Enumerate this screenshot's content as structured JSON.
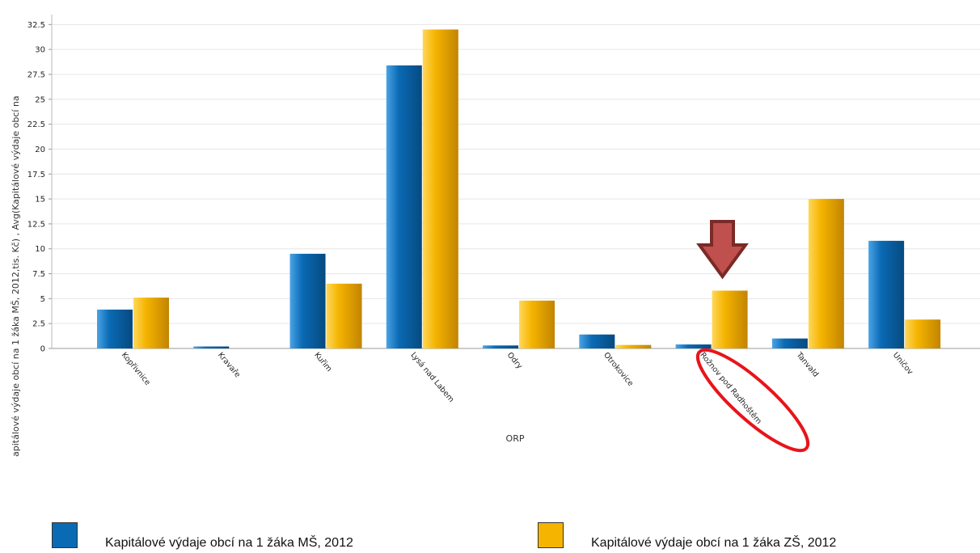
{
  "chart_data": {
    "type": "bar",
    "title": "",
    "xlabel": "ORP",
    "ylabel": "apitálové výdaje obcí na 1 žáka MŠ, 2012,tis. Kč) , Avg(Kapitálové výdaje obcí na",
    "ylim": [
      0,
      33.5
    ],
    "yticks": [
      "0",
      "2.5",
      "5",
      "7.5",
      "10",
      "12.5",
      "15",
      "17.5",
      "20",
      "22.5",
      "25",
      "27.5",
      "30",
      "32.5"
    ],
    "grid": true,
    "legend_position": "bottom",
    "categories": [
      "Kopřivnice",
      "Kravaře",
      "Kuřim",
      "Lysá nad Labem",
      "Odry",
      "Otrokovice",
      "Rožnov pod Radhoštěm",
      "Tanvald",
      "Uničov"
    ],
    "series": [
      {
        "name": "Kapitálové výdaje obcí na 1 žáka MŠ, 2012",
        "color": "#0a6ab4",
        "values": [
          3.9,
          0.2,
          9.5,
          28.4,
          0.3,
          1.4,
          0.4,
          1.0,
          10.8
        ]
      },
      {
        "name": "Kapitálové výdaje obcí na 1 žáka ZŠ, 2012",
        "color": "#f5b400",
        "values": [
          5.1,
          0.0,
          6.5,
          32.0,
          4.8,
          0.35,
          5.8,
          15.0,
          2.9
        ]
      }
    ],
    "annotations": [
      {
        "type": "arrow",
        "color": "#c0504d",
        "target_category": "Rožnov pod Radhoštěm"
      },
      {
        "type": "ellipse",
        "color": "#e02020",
        "target_category": "Rožnov pod Radhoštěm"
      }
    ]
  }
}
